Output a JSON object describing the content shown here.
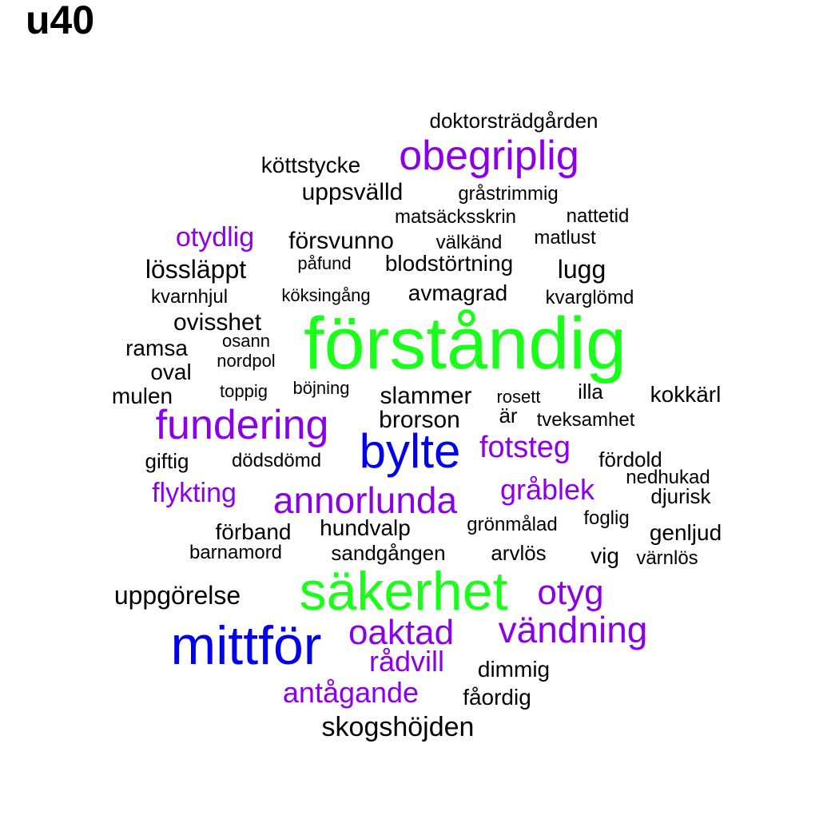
{
  "title": "u40",
  "colors": {
    "black": "#000000",
    "purple": "#8b00e8",
    "green": "#1aff1a",
    "blue": "#0000ee"
  },
  "words": [
    {
      "text": "förståndig",
      "color": "#1aff1a",
      "weight": 6
    },
    {
      "text": "säkerhet",
      "color": "#1aff1a",
      "weight": 5.5
    },
    {
      "text": "mittför",
      "color": "#0000ee",
      "weight": 5.5
    },
    {
      "text": "bylte",
      "color": "#0000ee",
      "weight": 4.5
    },
    {
      "text": "fundering",
      "color": "#8b00e8",
      "weight": 4
    },
    {
      "text": "obegriplig",
      "color": "#8b00e8",
      "weight": 4
    },
    {
      "text": "annorlunda",
      "color": "#8b00e8",
      "weight": 3.8
    },
    {
      "text": "vändning",
      "color": "#8b00e8",
      "weight": 3.8
    },
    {
      "text": "oaktad",
      "color": "#8b00e8",
      "weight": 3.8
    },
    {
      "text": "otyg",
      "color": "#8b00e8",
      "weight": 3.6
    },
    {
      "text": "fotsteg",
      "color": "#8b00e8",
      "weight": 3.2
    },
    {
      "text": "gråblek",
      "color": "#8b00e8",
      "weight": 3
    },
    {
      "text": "rådvill",
      "color": "#8b00e8",
      "weight": 3
    },
    {
      "text": "antågande",
      "color": "#8b00e8",
      "weight": 3
    },
    {
      "text": "flykting",
      "color": "#8b00e8",
      "weight": 2.8
    },
    {
      "text": "otydlig",
      "color": "#8b00e8",
      "weight": 2.8
    },
    {
      "text": "skogshöjden",
      "color": "#000000",
      "weight": 2.6
    },
    {
      "text": "lössläppt",
      "color": "#000000",
      "weight": 2.6
    },
    {
      "text": "lugg",
      "color": "#000000",
      "weight": 2.6
    },
    {
      "text": "uppgörelse",
      "color": "#000000",
      "weight": 2.6
    },
    {
      "text": "uppsvälld",
      "color": "#000000",
      "weight": 2.5
    },
    {
      "text": "försvunno",
      "color": "#000000",
      "weight": 2.5
    },
    {
      "text": "slammer",
      "color": "#000000",
      "weight": 2.5
    },
    {
      "text": "brorson",
      "color": "#000000",
      "weight": 2.4
    },
    {
      "text": "ovisshet",
      "color": "#000000",
      "weight": 2.4
    },
    {
      "text": "blodstörtning",
      "color": "#000000",
      "weight": 2.3
    },
    {
      "text": "avmagrad",
      "color": "#000000",
      "weight": 2.3
    },
    {
      "text": "hundvalp",
      "color": "#000000",
      "weight": 2.3
    },
    {
      "text": "genljud",
      "color": "#000000",
      "weight": 2.3
    },
    {
      "text": "mulen",
      "color": "#000000",
      "weight": 2.3
    },
    {
      "text": "kokkärl",
      "color": "#000000",
      "weight": 2.3
    },
    {
      "text": "oval",
      "color": "#000000",
      "weight": 2.3
    },
    {
      "text": "förband",
      "color": "#000000",
      "weight": 2.2
    },
    {
      "text": "köttstycke",
      "color": "#000000",
      "weight": 2.2
    },
    {
      "text": "ramsa",
      "color": "#000000",
      "weight": 2.2
    },
    {
      "text": "dimmig",
      "color": "#000000",
      "weight": 2.2
    },
    {
      "text": "vig",
      "color": "#000000",
      "weight": 2.2
    },
    {
      "text": "fåordig",
      "color": "#000000",
      "weight": 2.1
    },
    {
      "text": "doktorsträdgården",
      "color": "#000000",
      "weight": 2
    },
    {
      "text": "sandgången",
      "color": "#000000",
      "weight": 2
    },
    {
      "text": "fördold",
      "color": "#000000",
      "weight": 2
    },
    {
      "text": "giftig",
      "color": "#000000",
      "weight": 2
    },
    {
      "text": "arvlös",
      "color": "#000000",
      "weight": 2
    },
    {
      "text": "djurisk",
      "color": "#000000",
      "weight": 2
    },
    {
      "text": "illa",
      "color": "#000000",
      "weight": 2
    },
    {
      "text": "är",
      "color": "#000000",
      "weight": 2
    },
    {
      "text": "matsäcksskrin",
      "color": "#000000",
      "weight": 1.8
    },
    {
      "text": "gråstrimmig",
      "color": "#000000",
      "weight": 1.8
    },
    {
      "text": "dödsdömd",
      "color": "#000000",
      "weight": 1.8
    },
    {
      "text": "tveksamhet",
      "color": "#000000",
      "weight": 1.8
    },
    {
      "text": "kvarnhjul",
      "color": "#000000",
      "weight": 1.8
    },
    {
      "text": "kvarglömd",
      "color": "#000000",
      "weight": 1.8
    },
    {
      "text": "nattetid",
      "color": "#000000",
      "weight": 1.8
    },
    {
      "text": "matlust",
      "color": "#000000",
      "weight": 1.8
    },
    {
      "text": "välkänd",
      "color": "#000000",
      "weight": 1.8
    },
    {
      "text": "grönmålad",
      "color": "#000000",
      "weight": 1.8
    },
    {
      "text": "barnamord",
      "color": "#000000",
      "weight": 1.8
    },
    {
      "text": "värnlös",
      "color": "#000000",
      "weight": 1.8
    },
    {
      "text": "nedhukad",
      "color": "#000000",
      "weight": 1.8
    },
    {
      "text": "foglig",
      "color": "#000000",
      "weight": 1.8
    },
    {
      "text": "köksingång",
      "color": "#000000",
      "weight": 1.7
    },
    {
      "text": "påfund",
      "color": "#000000",
      "weight": 1.7
    },
    {
      "text": "nordpol",
      "color": "#000000",
      "weight": 1.7
    },
    {
      "text": "osann",
      "color": "#000000",
      "weight": 1.7
    },
    {
      "text": "toppig",
      "color": "#000000",
      "weight": 1.7
    },
    {
      "text": "böjning",
      "color": "#000000",
      "weight": 1.7
    },
    {
      "text": "rosett",
      "color": "#000000",
      "weight": 1.7
    }
  ]
}
